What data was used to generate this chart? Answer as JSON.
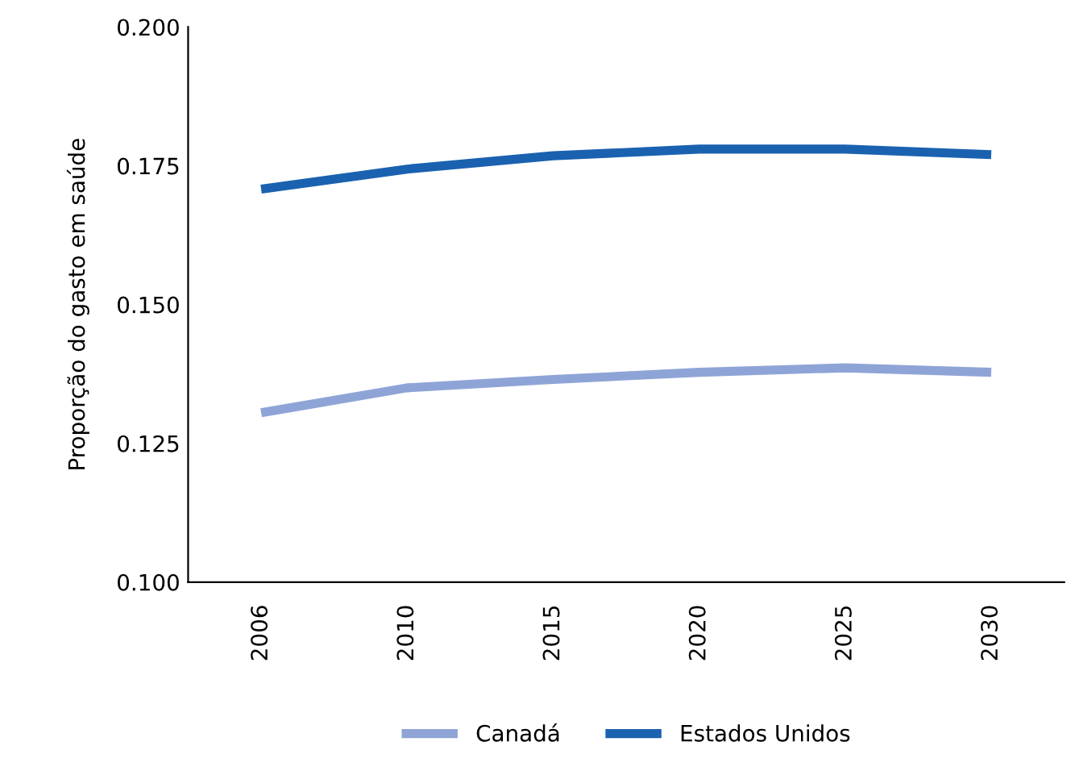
{
  "chart_data": {
    "type": "line",
    "ylabel": "Proporção do gasto em saúde",
    "categories": [
      "2006",
      "2010",
      "2015",
      "2020",
      "2025",
      "2030"
    ],
    "series": [
      {
        "name": "Canadá",
        "color": "#8fa4d6",
        "values": [
          0.1305,
          0.135,
          0.1365,
          0.1378,
          0.1386,
          0.1378
        ]
      },
      {
        "name": "Estados Unidos",
        "color": "#1a62b0",
        "values": [
          0.1708,
          0.1744,
          0.1768,
          0.178,
          0.178,
          0.177
        ]
      }
    ],
    "ylim": [
      0.1,
      0.2
    ],
    "yticks": [
      {
        "value": 0.1,
        "label": "0.100"
      },
      {
        "value": 0.125,
        "label": "0.125"
      },
      {
        "value": 0.15,
        "label": "0.150"
      },
      {
        "value": 0.175,
        "label": "0.175"
      },
      {
        "value": 0.2,
        "label": "0.200"
      }
    ],
    "grid": false,
    "legend": "bottom",
    "marker": "none",
    "line_style": "solid"
  }
}
